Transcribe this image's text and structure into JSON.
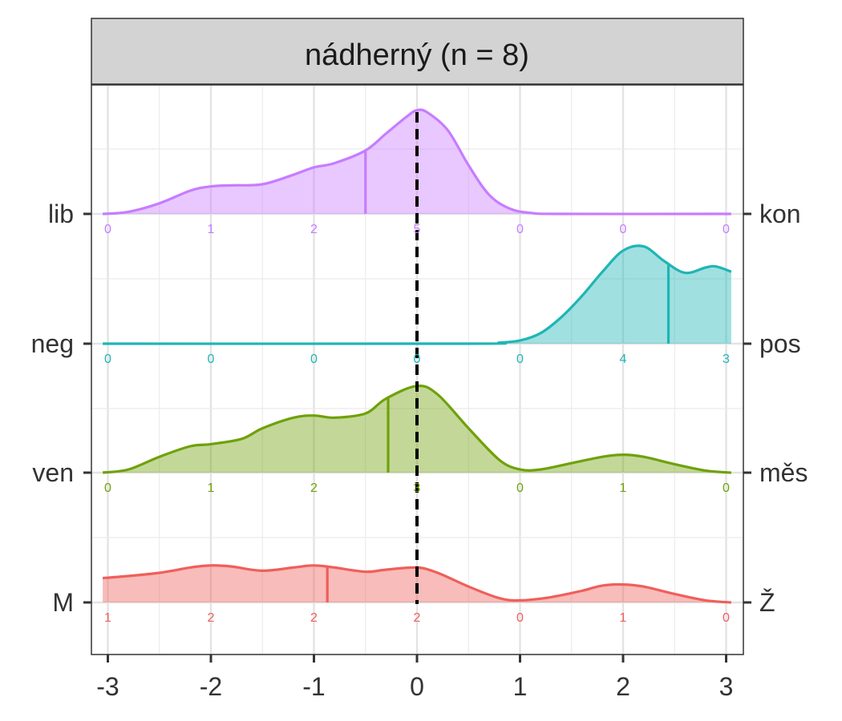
{
  "chart_data": {
    "type": "ridgeline",
    "title": "nádherný (n = 8)",
    "xlim": [
      -3.1,
      3.1
    ],
    "xticks": [
      "-3",
      "-2",
      "-1",
      "0",
      "1",
      "2",
      "3"
    ],
    "reference_line": 0,
    "grid": true,
    "series": [
      {
        "left_label": "lib",
        "right_label": "kon",
        "color": "#C77CFF",
        "counts": [
          "0",
          "1",
          "2",
          "5",
          "0",
          "0",
          "0"
        ],
        "mean": -0.5,
        "density": [
          [
            -3.05,
            0.0
          ],
          [
            -2.8,
            0.02
          ],
          [
            -2.5,
            0.1
          ],
          [
            -2.2,
            0.22
          ],
          [
            -2.0,
            0.26
          ],
          [
            -1.8,
            0.27
          ],
          [
            -1.5,
            0.28
          ],
          [
            -1.2,
            0.37
          ],
          [
            -1.0,
            0.44
          ],
          [
            -0.8,
            0.48
          ],
          [
            -0.5,
            0.6
          ],
          [
            -0.3,
            0.76
          ],
          [
            -0.1,
            0.92
          ],
          [
            0.0,
            0.98
          ],
          [
            0.1,
            0.96
          ],
          [
            0.3,
            0.79
          ],
          [
            0.5,
            0.46
          ],
          [
            0.7,
            0.18
          ],
          [
            0.9,
            0.05
          ],
          [
            1.1,
            0.01
          ],
          [
            1.4,
            0.0
          ],
          [
            3.05,
            0.0
          ]
        ]
      },
      {
        "left_label": "neg",
        "right_label": "pos",
        "color": "#1FB5B5",
        "counts": [
          "0",
          "0",
          "0",
          "0",
          "0",
          "4",
          "3"
        ],
        "mean": 2.44,
        "density": [
          [
            -3.05,
            0.0
          ],
          [
            0.5,
            0.0
          ],
          [
            0.8,
            0.01
          ],
          [
            1.0,
            0.03
          ],
          [
            1.2,
            0.1
          ],
          [
            1.4,
            0.25
          ],
          [
            1.6,
            0.45
          ],
          [
            1.8,
            0.68
          ],
          [
            2.0,
            0.88
          ],
          [
            2.2,
            0.92
          ],
          [
            2.4,
            0.78
          ],
          [
            2.6,
            0.67
          ],
          [
            2.8,
            0.72
          ],
          [
            2.9,
            0.73
          ],
          [
            3.05,
            0.68
          ]
        ]
      },
      {
        "left_label": "ven",
        "right_label": "měs",
        "color": "#6FA10A",
        "counts": [
          "0",
          "1",
          "2",
          "3",
          "0",
          "1",
          "0"
        ],
        "mean": -0.28,
        "density": [
          [
            -3.05,
            0.0
          ],
          [
            -2.8,
            0.03
          ],
          [
            -2.5,
            0.15
          ],
          [
            -2.2,
            0.25
          ],
          [
            -2.0,
            0.27
          ],
          [
            -1.7,
            0.32
          ],
          [
            -1.5,
            0.42
          ],
          [
            -1.2,
            0.52
          ],
          [
            -1.0,
            0.54
          ],
          [
            -0.8,
            0.52
          ],
          [
            -0.5,
            0.56
          ],
          [
            -0.3,
            0.7
          ],
          [
            0.0,
            0.82
          ],
          [
            0.2,
            0.74
          ],
          [
            0.5,
            0.42
          ],
          [
            0.8,
            0.12
          ],
          [
            1.0,
            0.03
          ],
          [
            1.2,
            0.03
          ],
          [
            1.5,
            0.09
          ],
          [
            1.8,
            0.15
          ],
          [
            2.0,
            0.17
          ],
          [
            2.2,
            0.15
          ],
          [
            2.5,
            0.08
          ],
          [
            2.8,
            0.02
          ],
          [
            3.05,
            0.0
          ]
        ]
      },
      {
        "left_label": "M",
        "right_label": "Ž",
        "color": "#EF5F5B",
        "counts": [
          "1",
          "2",
          "2",
          "2",
          "0",
          "1",
          "0"
        ],
        "mean": -0.87,
        "density": [
          [
            -3.05,
            0.23
          ],
          [
            -2.8,
            0.25
          ],
          [
            -2.5,
            0.28
          ],
          [
            -2.2,
            0.33
          ],
          [
            -2.0,
            0.35
          ],
          [
            -1.8,
            0.34
          ],
          [
            -1.5,
            0.3
          ],
          [
            -1.2,
            0.33
          ],
          [
            -1.0,
            0.35
          ],
          [
            -0.8,
            0.33
          ],
          [
            -0.5,
            0.29
          ],
          [
            -0.3,
            0.31
          ],
          [
            0.0,
            0.33
          ],
          [
            0.2,
            0.28
          ],
          [
            0.5,
            0.15
          ],
          [
            0.8,
            0.04
          ],
          [
            1.0,
            0.02
          ],
          [
            1.3,
            0.05
          ],
          [
            1.6,
            0.11
          ],
          [
            1.8,
            0.16
          ],
          [
            2.0,
            0.17
          ],
          [
            2.2,
            0.15
          ],
          [
            2.5,
            0.08
          ],
          [
            2.8,
            0.02
          ],
          [
            3.05,
            0.0
          ]
        ]
      }
    ]
  }
}
